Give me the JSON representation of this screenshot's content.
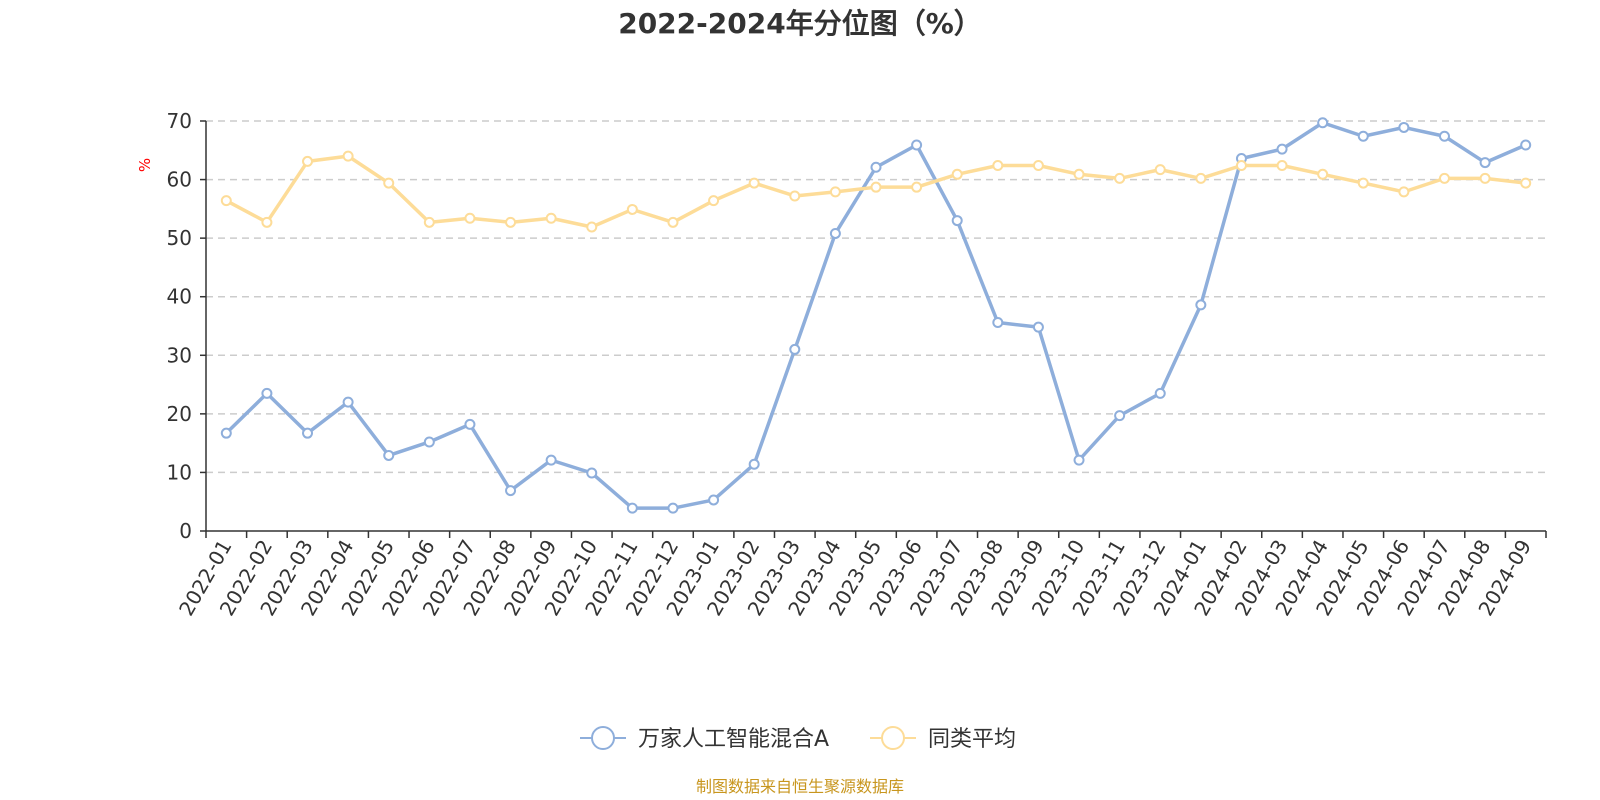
{
  "chart_data": {
    "type": "line",
    "title": "2022-2024年分位图（%）",
    "ylabel": "%",
    "ylim": [
      0,
      70
    ],
    "yticks": [
      0,
      10,
      20,
      30,
      40,
      50,
      60,
      70
    ],
    "grid": true,
    "legend_position": "bottom-center",
    "categories": [
      "2022-01",
      "2022-02",
      "2022-03",
      "2022-04",
      "2022-05",
      "2022-06",
      "2022-07",
      "2022-08",
      "2022-09",
      "2022-10",
      "2022-11",
      "2022-12",
      "2023-01",
      "2023-02",
      "2023-03",
      "2023-04",
      "2023-05",
      "2023-06",
      "2023-07",
      "2023-08",
      "2023-09",
      "2023-10",
      "2023-11",
      "2023-12",
      "2024-01",
      "2024-02",
      "2024-03",
      "2024-04",
      "2024-05",
      "2024-06",
      "2024-07",
      "2024-08",
      "2024-09"
    ],
    "series": [
      {
        "name": "万家人工智能混合A",
        "color": "#8eaedb",
        "values": [
          16.7,
          23.5,
          16.7,
          22.0,
          12.9,
          15.2,
          18.2,
          6.9,
          12.1,
          9.9,
          3.9,
          3.9,
          5.3,
          11.4,
          31.0,
          50.8,
          62.1,
          65.9,
          53.0,
          35.6,
          34.8,
          12.1,
          19.7,
          23.5,
          38.6,
          63.6,
          65.2,
          69.7,
          67.4,
          68.9,
          67.4,
          62.9,
          65.9
        ]
      },
      {
        "name": "同类平均",
        "color": "#fddc98",
        "values": [
          56.4,
          52.7,
          63.1,
          64.0,
          59.4,
          52.7,
          53.4,
          52.7,
          53.4,
          51.9,
          54.9,
          52.7,
          56.4,
          59.4,
          57.2,
          57.9,
          58.7,
          58.7,
          60.9,
          62.4,
          62.4,
          60.9,
          60.2,
          61.7,
          60.2,
          62.4,
          62.4,
          60.9,
          59.4,
          57.9,
          60.2,
          60.2,
          59.4
        ]
      }
    ],
    "axis_color": "#333333",
    "grid_color": "#cccccc",
    "unit_color": "#ff0000"
  },
  "source_text": "制图数据来自恒生聚源数据库",
  "source_color": "#c8961e"
}
